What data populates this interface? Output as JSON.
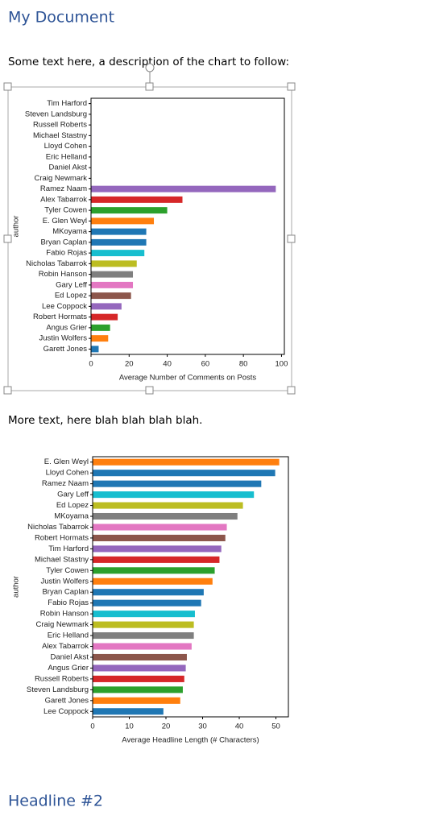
{
  "title": "My Document",
  "paragraphs": [
    "Some text here, a description of the chart to follow:",
    "More text, here blah blah blah blah."
  ],
  "headline": "Headline #2",
  "chart_data": [
    {
      "type": "barh",
      "categories": [
        "Tim Harford",
        "Steven Landsburg",
        "Russell Roberts",
        "Michael Stastny",
        "Lloyd Cohen",
        "Eric Helland",
        "Daniel Akst",
        "Craig Newmark",
        "Ramez Naam",
        "Alex Tabarrok",
        "Tyler Cowen",
        "E. Glen Weyl",
        "MKoyama",
        "Bryan Caplan",
        "Fabio Rojas",
        "Nicholas Tabarrok",
        "Robin Hanson",
        "Gary Leff",
        "Ed Lopez",
        "Lee Coppock",
        "Robert Hormats",
        "Angus Grier",
        "Justin Wolfers",
        "Garett Jones"
      ],
      "values": [
        0,
        0,
        0,
        0,
        0,
        0,
        0,
        0,
        97,
        48,
        40,
        33,
        29,
        29,
        28,
        24,
        22,
        22,
        21,
        16,
        14,
        10,
        9,
        4
      ],
      "colors": [
        "#2ca02c",
        "#ff7f0e",
        "#1f77b4",
        "#17becf",
        "#bcbd22",
        "#7f7f7f",
        "#e377c2",
        "#8c564b",
        "#9467bd",
        "#d62728",
        "#2ca02c",
        "#ff7f0e",
        "#1f77b4",
        "#1f77b4",
        "#17becf",
        "#bcbd22",
        "#7f7f7f",
        "#e377c2",
        "#8c564b",
        "#9467bd",
        "#d62728",
        "#2ca02c",
        "#ff7f0e",
        "#1f77b4"
      ],
      "xlabel": "Average Number of Comments on Posts",
      "ylabel": "author",
      "xlim": [
        0,
        101.5
      ],
      "xticks": [
        0,
        20,
        40,
        60,
        80,
        100
      ]
    },
    {
      "type": "barh",
      "categories": [
        "E. Glen Weyl",
        "Lloyd Cohen",
        "Ramez Naam",
        "Gary Leff",
        "Ed Lopez",
        "MKoyama",
        "Nicholas Tabarrok",
        "Robert Hormats",
        "Tim Harford",
        "Michael Stastny",
        "Tyler Cowen",
        "Justin Wolfers",
        "Bryan Caplan",
        "Fabio Rojas",
        "Robin Hanson",
        "Craig Newmark",
        "Eric Helland",
        "Alex Tabarrok",
        "Daniel Akst",
        "Angus Grier",
        "Russell Roberts",
        "Steven Landsburg",
        "Garett Jones",
        "Lee Coppock"
      ],
      "values": [
        50.9,
        49.8,
        46,
        44,
        41,
        39.5,
        36.6,
        36.2,
        35.1,
        34.6,
        33.3,
        32.7,
        30.3,
        29.6,
        27.9,
        27.6,
        27.6,
        27,
        25.7,
        25.4,
        25,
        24.6,
        23.9,
        19.3
      ],
      "colors": [
        "#ff7f0e",
        "#1f77b4",
        "#1f77b4",
        "#17becf",
        "#bcbd22",
        "#7f7f7f",
        "#e377c2",
        "#8c564b",
        "#9467bd",
        "#d62728",
        "#2ca02c",
        "#ff7f0e",
        "#1f77b4",
        "#1f77b4",
        "#17becf",
        "#bcbd22",
        "#7f7f7f",
        "#e377c2",
        "#8c564b",
        "#9467bd",
        "#d62728",
        "#2ca02c",
        "#ff7f0e",
        "#1f77b4"
      ],
      "xlabel": "Average Headline Length (# Characters)",
      "ylabel": "author",
      "xlim": [
        0,
        53.4
      ],
      "xticks": [
        0,
        10,
        20,
        30,
        40,
        50
      ]
    }
  ]
}
